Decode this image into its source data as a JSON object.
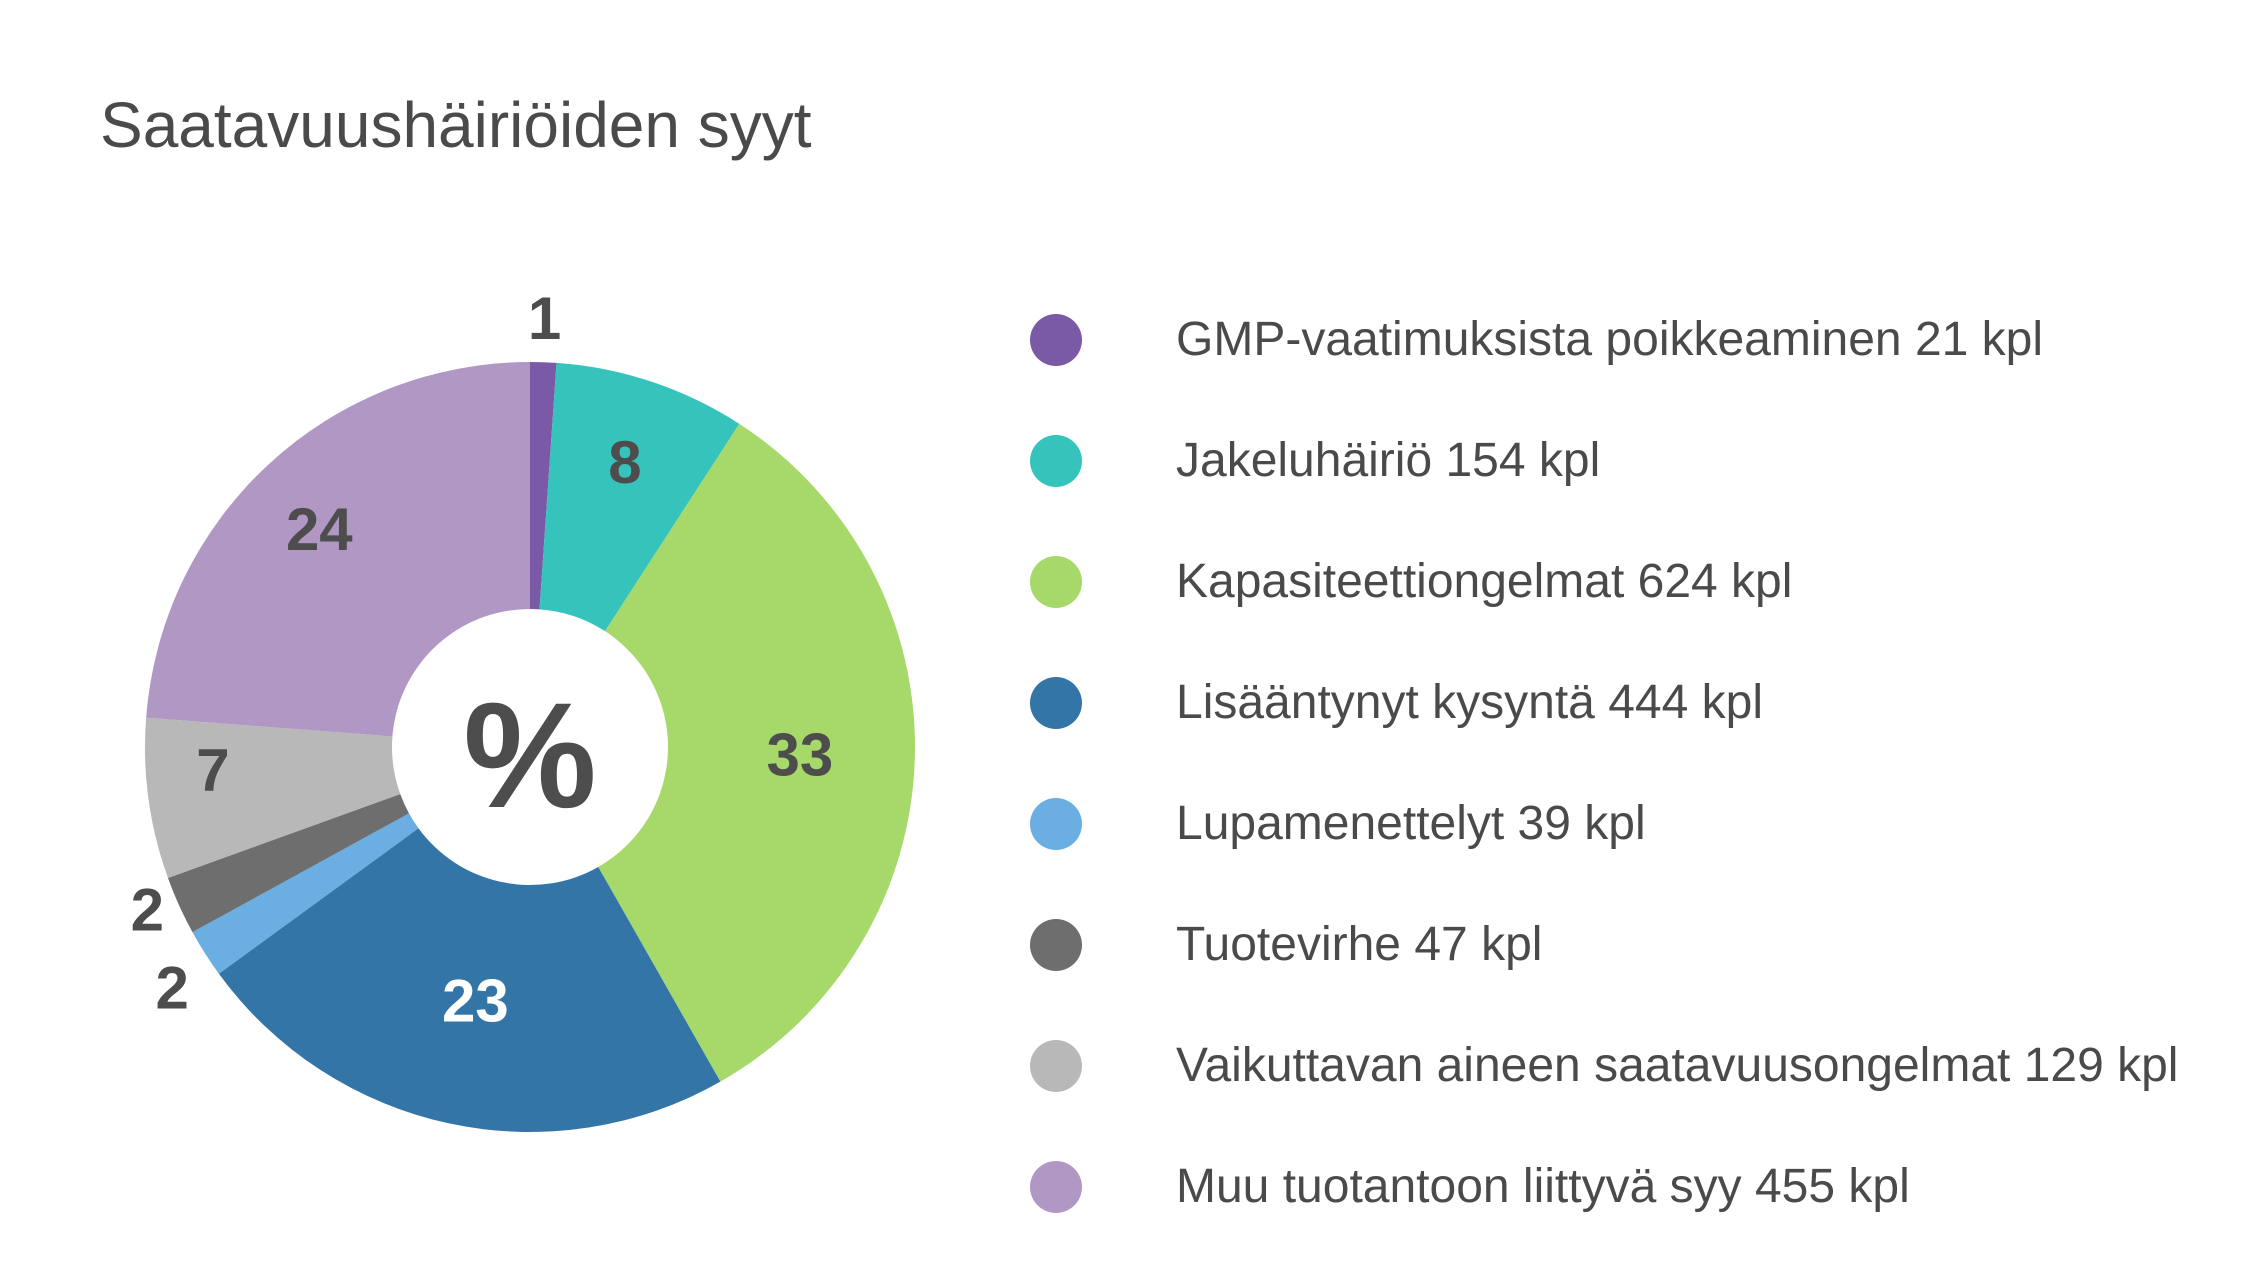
{
  "chart_data": {
    "type": "pie",
    "title": "Saatavuushäiriöiden syyt",
    "center_label": "%",
    "slices": [
      {
        "label": "GMP-vaatimuksista poikkeaminen 21 kpl",
        "count": 21,
        "percent": 1,
        "percent_label": "1",
        "color": "#7a5aa6",
        "label_color": "#4d4d4d"
      },
      {
        "label": "Jakeluhäiriö 154 kpl",
        "count": 154,
        "percent": 8,
        "percent_label": "8",
        "color": "#36c3bc",
        "label_color": "#4d4d4d"
      },
      {
        "label": "Kapasiteettiongelmat 624 kpl",
        "count": 624,
        "percent": 33,
        "percent_label": "33",
        "color": "#a6d96a",
        "label_color": "#4d4d4d"
      },
      {
        "label": "Lisääntynyt kysyntä 444 kpl",
        "count": 444,
        "percent": 23,
        "percent_label": "23",
        "color": "#3475a8",
        "label_color": "#ffffff"
      },
      {
        "label": "Lupamenettelyt 39 kpl",
        "count": 39,
        "percent": 2,
        "percent_label": "2",
        "color": "#6aaee2",
        "label_color": "#4d4d4d"
      },
      {
        "label": "Tuotevirhe 47 kpl",
        "count": 47,
        "percent": 2,
        "percent_label": "2",
        "color": "#6e6e6e",
        "label_color": "#4d4d4d"
      },
      {
        "label": "Vaikuttavan aineen saatavuusongelmat 129 kpl",
        "count": 129,
        "percent": 7,
        "percent_label": "7",
        "color": "#b8b8b8",
        "label_color": "#4d4d4d"
      },
      {
        "label": "Muu tuotantoon liittyvä syy 455 kpl",
        "count": 455,
        "percent": 24,
        "percent_label": "24",
        "color": "#b097c4",
        "label_color": "#4d4d4d"
      }
    ],
    "legend_position": "right"
  }
}
